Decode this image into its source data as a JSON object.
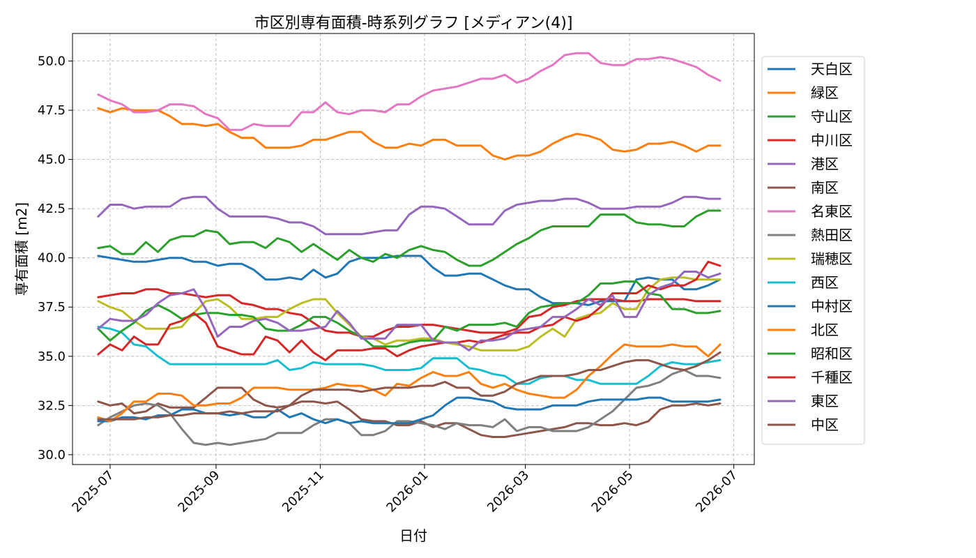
{
  "chart_data": {
    "type": "line",
    "title": "市区別専有面積-時系列グラフ [メディアン(4)]",
    "xlabel": "日付",
    "ylabel": "専有面積 [m2]",
    "xlim": [
      "2025-06-09",
      "2026-07-13"
    ],
    "ylim": [
      29.5,
      51.4
    ],
    "xticks": [
      "2025-07",
      "2025-09",
      "2025-11",
      "2026-01",
      "2026-03",
      "2026-05",
      "2026-07"
    ],
    "xtick_dates": [
      "2025-07-01",
      "2025-09-01",
      "2025-11-01",
      "2026-01-01",
      "2026-03-01",
      "2026-05-01",
      "2026-07-01"
    ],
    "yticks": [
      "30.0",
      "32.5",
      "35.0",
      "37.5",
      "40.0",
      "42.5",
      "45.0",
      "47.5",
      "50.0"
    ],
    "ytick_values": [
      30.0,
      32.5,
      35.0,
      37.5,
      40.0,
      42.5,
      45.0,
      47.5,
      50.0
    ],
    "grid": true,
    "legend_position": "right",
    "x": [
      "2025-06-24",
      "2025-07-01",
      "2025-07-08",
      "2025-07-15",
      "2025-07-22",
      "2025-07-29",
      "2025-08-05",
      "2025-08-12",
      "2025-08-19",
      "2025-08-26",
      "2025-09-02",
      "2025-09-09",
      "2025-09-16",
      "2025-09-23",
      "2025-09-30",
      "2025-10-07",
      "2025-10-14",
      "2025-10-21",
      "2025-10-28",
      "2025-11-04",
      "2025-11-11",
      "2025-11-18",
      "2025-11-25",
      "2025-12-02",
      "2025-12-09",
      "2025-12-16",
      "2025-12-23",
      "2025-12-30",
      "2026-01-06",
      "2026-01-13",
      "2026-01-20",
      "2026-01-27",
      "2026-02-03",
      "2026-02-10",
      "2026-02-17",
      "2026-02-24",
      "2026-03-03",
      "2026-03-10",
      "2026-03-17",
      "2026-03-24",
      "2026-03-31",
      "2026-04-07",
      "2026-04-14",
      "2026-04-21",
      "2026-04-28",
      "2026-05-05",
      "2026-05-12",
      "2026-05-19",
      "2026-05-26",
      "2026-06-02",
      "2026-06-09",
      "2026-06-16",
      "2026-06-23"
    ],
    "series": [
      {
        "name": "天白区",
        "color": "#1f77b4",
        "values": [
          40.1,
          40.0,
          39.9,
          39.8,
          39.8,
          39.9,
          40.0,
          40.0,
          39.8,
          39.8,
          39.6,
          39.7,
          39.7,
          39.4,
          38.9,
          38.9,
          39.0,
          38.9,
          39.4,
          39.0,
          39.2,
          39.8,
          40.0,
          40.0,
          40.0,
          40.1,
          40.1,
          40.1,
          39.5,
          39.1,
          39.1,
          39.2,
          39.2,
          38.9,
          38.6,
          38.4,
          38.4,
          38.0,
          37.7,
          37.7,
          37.7,
          37.6,
          37.8,
          37.8,
          37.8,
          38.9,
          39.0,
          38.9,
          38.9,
          38.4,
          38.4,
          38.6,
          38.9
        ]
      },
      {
        "name": "緑区",
        "color": "#ff7f0e",
        "values": [
          47.6,
          47.4,
          47.6,
          47.5,
          47.5,
          47.5,
          47.2,
          46.8,
          46.8,
          46.7,
          46.8,
          46.4,
          46.1,
          46.1,
          45.6,
          45.6,
          45.6,
          45.7,
          46.0,
          46.0,
          46.2,
          46.4,
          46.4,
          45.9,
          45.6,
          45.6,
          45.8,
          45.7,
          46.0,
          46.0,
          45.7,
          45.7,
          45.7,
          45.2,
          45.0,
          45.2,
          45.2,
          45.4,
          45.8,
          46.1,
          46.3,
          46.2,
          46.0,
          45.5,
          45.4,
          45.5,
          45.8,
          45.8,
          45.9,
          45.7,
          45.4,
          45.7,
          45.7
        ]
      },
      {
        "name": "守山区",
        "color": "#2ca02c",
        "values": [
          40.5,
          40.6,
          40.2,
          40.2,
          40.8,
          40.3,
          40.9,
          41.1,
          41.1,
          41.4,
          41.3,
          40.7,
          40.8,
          40.8,
          40.5,
          41.0,
          40.8,
          40.3,
          40.7,
          40.3,
          39.9,
          40.4,
          40.0,
          39.8,
          40.2,
          40.0,
          40.4,
          40.6,
          40.4,
          40.3,
          39.9,
          39.6,
          39.6,
          39.9,
          40.3,
          40.7,
          41.0,
          41.4,
          41.6,
          41.6,
          41.6,
          41.6,
          42.2,
          42.2,
          42.2,
          41.8,
          41.7,
          41.7,
          41.6,
          41.6,
          42.1,
          42.4,
          42.4
        ]
      },
      {
        "name": "中川区",
        "color": "#d62728",
        "values": [
          38.0,
          38.1,
          38.2,
          38.2,
          38.4,
          38.4,
          38.2,
          38.2,
          38.1,
          38.0,
          38.1,
          38.1,
          37.7,
          37.6,
          37.4,
          37.4,
          37.2,
          37.1,
          36.7,
          36.3,
          36.2,
          36.2,
          36.0,
          36.0,
          36.3,
          36.5,
          36.5,
          36.6,
          36.6,
          36.5,
          36.4,
          36.3,
          36.2,
          36.2,
          36.2,
          36.4,
          37.0,
          37.1,
          37.5,
          37.6,
          37.8,
          37.9,
          37.9,
          37.9,
          37.8,
          37.8,
          37.9,
          37.9,
          37.9,
          37.9,
          37.8,
          37.8,
          37.8
        ]
      },
      {
        "name": "港区",
        "color": "#9467bd",
        "values": [
          42.1,
          42.7,
          42.7,
          42.5,
          42.6,
          42.6,
          42.6,
          43.0,
          43.1,
          43.1,
          42.5,
          42.1,
          42.1,
          42.1,
          42.1,
          42.0,
          41.8,
          41.8,
          41.6,
          41.2,
          41.2,
          41.2,
          41.2,
          41.3,
          41.4,
          41.4,
          42.2,
          42.6,
          42.6,
          42.5,
          42.1,
          41.7,
          41.7,
          41.7,
          42.4,
          42.7,
          42.8,
          42.9,
          42.9,
          43.0,
          43.0,
          42.8,
          42.5,
          42.5,
          42.5,
          42.6,
          42.6,
          42.6,
          42.8,
          43.1,
          43.1,
          43.0,
          43.0
        ]
      },
      {
        "name": "南区",
        "color": "#8c564b",
        "values": [
          32.7,
          32.5,
          32.6,
          32.1,
          32.2,
          32.6,
          32.4,
          32.4,
          32.4,
          32.9,
          33.4,
          33.4,
          33.4,
          32.8,
          32.5,
          32.4,
          32.5,
          32.7,
          32.7,
          32.6,
          32.7,
          32.3,
          31.8,
          31.7,
          31.7,
          31.5,
          31.5,
          31.7,
          31.4,
          31.6,
          31.6,
          31.3,
          31.0,
          30.9,
          30.9,
          31.0,
          31.1,
          31.2,
          31.3,
          31.4,
          31.6,
          31.6,
          31.5,
          31.5,
          31.6,
          31.5,
          31.7,
          32.3,
          32.5,
          32.5,
          32.6,
          32.5,
          32.6
        ]
      },
      {
        "name": "名東区",
        "color": "#e377c2",
        "values": [
          48.3,
          48.0,
          47.8,
          47.4,
          47.4,
          47.5,
          47.8,
          47.8,
          47.7,
          47.3,
          47.1,
          46.5,
          46.5,
          46.8,
          46.7,
          46.7,
          46.7,
          47.4,
          47.4,
          47.9,
          47.4,
          47.3,
          47.5,
          47.5,
          47.4,
          47.8,
          47.8,
          48.2,
          48.5,
          48.6,
          48.7,
          48.9,
          49.1,
          49.1,
          49.3,
          48.9,
          49.1,
          49.5,
          49.8,
          50.3,
          50.4,
          50.4,
          49.9,
          49.8,
          49.8,
          50.1,
          50.1,
          50.2,
          50.1,
          49.9,
          49.7,
          49.3,
          49.0
        ]
      },
      {
        "name": "熱田区",
        "color": "#7f7f7f",
        "values": [
          31.5,
          31.9,
          32.2,
          32.5,
          32.6,
          32.5,
          32.1,
          31.3,
          30.6,
          30.5,
          30.6,
          30.5,
          30.6,
          30.7,
          30.8,
          31.1,
          31.1,
          31.1,
          31.5,
          31.8,
          31.8,
          31.6,
          31.0,
          31.0,
          31.2,
          31.7,
          31.7,
          31.6,
          31.5,
          31.3,
          31.6,
          31.5,
          31.5,
          31.4,
          31.8,
          31.2,
          31.4,
          31.4,
          31.2,
          31.2,
          31.2,
          31.4,
          31.8,
          32.2,
          32.8,
          33.4,
          33.5,
          33.7,
          34.1,
          34.3,
          34.0,
          34.0,
          33.9
        ]
      },
      {
        "name": "瑞穂区",
        "color": "#bcbd22",
        "values": [
          37.8,
          37.5,
          37.3,
          36.8,
          36.4,
          36.4,
          36.4,
          36.5,
          37.2,
          37.8,
          37.9,
          37.5,
          36.9,
          36.9,
          37.0,
          37.0,
          37.4,
          37.7,
          37.9,
          37.9,
          37.2,
          36.6,
          36.0,
          35.9,
          35.6,
          35.8,
          35.8,
          35.9,
          35.9,
          35.7,
          35.6,
          35.5,
          35.3,
          35.3,
          35.3,
          35.3,
          35.5,
          36.0,
          36.4,
          36.0,
          36.9,
          37.1,
          37.2,
          37.7,
          37.4,
          37.4,
          38.4,
          38.9,
          39.0,
          39.0,
          38.9,
          38.9,
          38.9
        ]
      },
      {
        "name": "西区",
        "color": "#17becf",
        "values": [
          36.5,
          36.4,
          36.2,
          35.6,
          35.5,
          35.0,
          34.6,
          34.6,
          34.6,
          34.6,
          34.6,
          34.6,
          34.6,
          34.6,
          34.6,
          34.8,
          34.3,
          34.4,
          34.7,
          34.6,
          34.6,
          34.6,
          34.6,
          34.5,
          34.3,
          34.3,
          34.3,
          34.4,
          34.9,
          34.9,
          34.9,
          34.4,
          34.3,
          34.1,
          34.0,
          33.6,
          33.6,
          33.9,
          34.0,
          34.0,
          33.8,
          33.8,
          33.6,
          33.6,
          33.6,
          33.6,
          34.0,
          34.5,
          34.7,
          34.6,
          34.6,
          34.7,
          34.8
        ]
      },
      {
        "name": "中村区",
        "color": "#1f77b4",
        "values": [
          31.7,
          31.7,
          31.9,
          31.9,
          31.8,
          32.0,
          32.0,
          32.3,
          32.3,
          32.1,
          32.1,
          32.0,
          32.1,
          31.9,
          31.9,
          32.3,
          31.9,
          32.1,
          31.8,
          31.6,
          31.8,
          31.6,
          31.7,
          31.6,
          31.6,
          31.6,
          31.6,
          31.8,
          32.0,
          32.5,
          32.9,
          32.9,
          32.8,
          32.7,
          32.4,
          32.3,
          32.3,
          32.3,
          32.5,
          32.5,
          32.5,
          32.7,
          32.8,
          32.8,
          32.8,
          32.8,
          32.9,
          32.9,
          32.7,
          32.7,
          32.7,
          32.7,
          32.8
        ]
      },
      {
        "name": "北区",
        "color": "#ff7f0e",
        "values": [
          31.9,
          31.7,
          32.1,
          32.7,
          32.7,
          33.1,
          33.1,
          33.0,
          32.5,
          32.5,
          32.6,
          32.6,
          32.9,
          33.4,
          33.4,
          33.4,
          33.3,
          33.3,
          33.3,
          33.4,
          33.6,
          33.5,
          33.5,
          33.3,
          33.0,
          33.6,
          33.5,
          33.9,
          34.2,
          34.0,
          34.0,
          34.2,
          33.6,
          33.4,
          33.6,
          33.3,
          33.1,
          33.0,
          32.9,
          32.9,
          33.3,
          34.0,
          34.5,
          35.1,
          35.6,
          35.5,
          35.5,
          35.5,
          35.6,
          35.5,
          35.5,
          35.0,
          35.6
        ]
      },
      {
        "name": "昭和区",
        "color": "#2ca02c",
        "values": [
          36.4,
          35.8,
          36.3,
          36.7,
          37.3,
          37.6,
          37.3,
          36.9,
          37.1,
          37.2,
          37.2,
          37.1,
          37.1,
          37.0,
          36.4,
          36.3,
          36.3,
          36.6,
          37.0,
          37.0,
          36.7,
          36.3,
          36.0,
          35.5,
          35.5,
          35.5,
          35.7,
          35.8,
          35.8,
          36.5,
          36.3,
          36.6,
          36.6,
          36.6,
          36.7,
          36.5,
          37.2,
          37.5,
          37.6,
          37.7,
          37.7,
          38.1,
          38.7,
          38.7,
          38.8,
          38.8,
          38.2,
          38.1,
          37.4,
          37.4,
          37.2,
          37.2,
          37.3
        ]
      },
      {
        "name": "千種区",
        "color": "#d62728",
        "values": [
          35.1,
          35.6,
          35.3,
          36.0,
          35.6,
          35.6,
          36.6,
          36.8,
          37.2,
          36.7,
          35.5,
          35.3,
          35.1,
          35.1,
          36.0,
          35.8,
          35.2,
          35.8,
          35.2,
          34.8,
          35.3,
          35.3,
          35.3,
          35.4,
          35.4,
          35.0,
          35.3,
          35.5,
          35.6,
          35.7,
          35.7,
          35.8,
          35.7,
          35.9,
          36.1,
          36.2,
          36.2,
          36.5,
          36.6,
          37.0,
          36.8,
          37.0,
          37.5,
          38.2,
          38.2,
          38.2,
          38.6,
          38.4,
          38.6,
          38.6,
          38.9,
          39.8,
          39.6
        ]
      },
      {
        "name": "東区",
        "color": "#9467bd",
        "values": [
          36.4,
          36.9,
          36.8,
          36.8,
          37.1,
          37.7,
          38.1,
          38.2,
          38.4,
          37.4,
          36.0,
          36.5,
          36.5,
          36.8,
          36.9,
          36.7,
          36.3,
          36.3,
          36.4,
          36.5,
          37.3,
          36.7,
          35.9,
          35.9,
          35.9,
          36.6,
          36.6,
          36.6,
          35.8,
          35.7,
          35.7,
          35.3,
          35.8,
          35.8,
          35.9,
          36.3,
          36.4,
          36.5,
          37.0,
          37.0,
          37.4,
          37.9,
          37.6,
          38.1,
          37.0,
          37.0,
          38.1,
          38.5,
          38.7,
          39.3,
          39.3,
          39.0,
          39.2
        ]
      },
      {
        "name": "中区",
        "color": "#8c564b",
        "values": [
          31.8,
          31.8,
          31.8,
          31.8,
          31.9,
          31.9,
          32.0,
          32.0,
          32.1,
          32.1,
          32.1,
          32.2,
          32.1,
          32.2,
          32.2,
          32.2,
          32.5,
          33.0,
          33.3,
          33.3,
          33.3,
          33.3,
          33.2,
          33.3,
          33.4,
          33.4,
          33.4,
          33.5,
          33.5,
          33.7,
          33.4,
          33.4,
          33.0,
          33.0,
          33.2,
          33.6,
          33.8,
          34.0,
          34.0,
          34.0,
          34.1,
          34.3,
          34.3,
          34.5,
          34.7,
          34.8,
          34.8,
          34.6,
          34.4,
          34.3,
          34.5,
          34.8,
          35.2
        ]
      }
    ]
  }
}
